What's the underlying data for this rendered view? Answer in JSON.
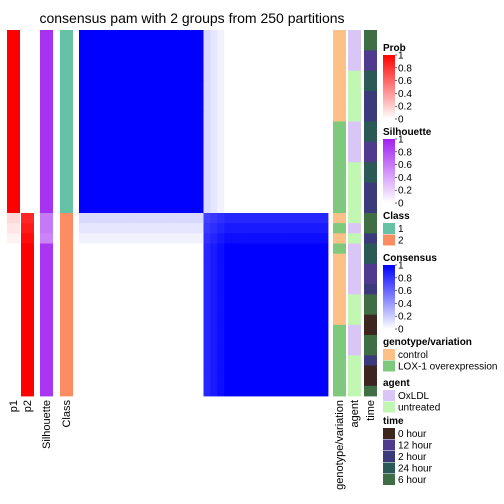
{
  "chart_data": {
    "type": "heatmap",
    "title": "consensus pam with 2 groups from 250 partitions",
    "n_samples": 36,
    "consensus_min": 0,
    "consensus_max": 1,
    "columns": {
      "p1": [
        1,
        1,
        1,
        1,
        1,
        1,
        1,
        1,
        1,
        1,
        1,
        1,
        1,
        1,
        1,
        1,
        1,
        1,
        0.15,
        0.1,
        0.05,
        0,
        0,
        0,
        0,
        0,
        0,
        0,
        0,
        0,
        0,
        0,
        0,
        0,
        0,
        0
      ],
      "p2": [
        0,
        0,
        0,
        0,
        0,
        0,
        0,
        0,
        0,
        0,
        0,
        0,
        0,
        0,
        0,
        0,
        0,
        0,
        0.85,
        0.9,
        0.95,
        1,
        1,
        1,
        1,
        1,
        1,
        1,
        1,
        1,
        1,
        1,
        1,
        1,
        1,
        1
      ],
      "silhouette": [
        0.92,
        0.92,
        0.92,
        0.92,
        0.92,
        0.92,
        0.92,
        0.92,
        0.92,
        0.92,
        0.92,
        0.92,
        0.92,
        0.92,
        0.92,
        0.92,
        0.92,
        0.92,
        0.6,
        0.6,
        0.55,
        0.9,
        0.9,
        0.9,
        0.9,
        0.9,
        0.9,
        0.9,
        0.9,
        0.9,
        0.9,
        0.9,
        0.9,
        0.9,
        0.9,
        0.9
      ],
      "class": [
        1,
        1,
        1,
        1,
        1,
        1,
        1,
        1,
        1,
        1,
        1,
        1,
        1,
        1,
        1,
        1,
        1,
        1,
        2,
        2,
        2,
        2,
        2,
        2,
        2,
        2,
        2,
        2,
        2,
        2,
        2,
        2,
        2,
        2,
        2,
        2
      ],
      "genotype_variation": [
        "control",
        "control",
        "control",
        "control",
        "control",
        "control",
        "control",
        "control",
        "control",
        "LOX-1 overexpression",
        "LOX-1 overexpression",
        "LOX-1 overexpression",
        "LOX-1 overexpression",
        "LOX-1 overexpression",
        "LOX-1 overexpression",
        "LOX-1 overexpression",
        "LOX-1 overexpression",
        "LOX-1 overexpression",
        "control",
        "LOX-1 overexpression",
        "control",
        "LOX-1 overexpression",
        "control",
        "control",
        "control",
        "control",
        "control",
        "control",
        "control",
        "LOX-1 overexpression",
        "LOX-1 overexpression",
        "LOX-1 overexpression",
        "LOX-1 overexpression",
        "LOX-1 overexpression",
        "LOX-1 overexpression",
        "LOX-1 overexpression"
      ],
      "agent": [
        "OxLDL",
        "OxLDL",
        "OxLDL",
        "OxLDL",
        "untreated",
        "untreated",
        "untreated",
        "untreated",
        "untreated",
        "OxLDL",
        "OxLDL",
        "OxLDL",
        "OxLDL",
        "untreated",
        "untreated",
        "untreated",
        "untreated",
        "untreated",
        "untreated",
        "OxLDL",
        "untreated",
        "OxLDL",
        "OxLDL",
        "OxLDL",
        "OxLDL",
        "OxLDL",
        "untreated",
        "untreated",
        "untreated",
        "OxLDL",
        "OxLDL",
        "OxLDL",
        "untreated",
        "untreated",
        "untreated",
        "untreated"
      ],
      "time": [
        "6 hour",
        "6 hour",
        "12 hour",
        "12 hour",
        "24 hour",
        "24 hour",
        "2 hour",
        "2 hour",
        "2 hour",
        "24 hour",
        "24 hour",
        "12 hour",
        "12 hour",
        "24 hour",
        "24 hour",
        "2 hour",
        "2 hour",
        "2 hour",
        "6 hour",
        "6 hour",
        "2 hour",
        "24 hour",
        "24 hour",
        "12 hour",
        "12 hour",
        "2 hour",
        "6 hour",
        "6 hour",
        "0 hour",
        "0 hour",
        "6 hour",
        "6 hour",
        "2 hour",
        "0 hour",
        "0 hour",
        "6 hour"
      ]
    },
    "column_labels": {
      "p1": "p1",
      "p2": "p2",
      "silhouette": "Silhouette",
      "class": "Class",
      "genotype_variation": "genotype/variation",
      "agent": "agent",
      "time": "time"
    }
  },
  "legends": {
    "prob": {
      "title": "Prob",
      "ticks": [
        "1",
        "0.8",
        "0.6",
        "0.4",
        "0.2",
        "0"
      ],
      "color_high": "#ff0000",
      "color_low": "#ffffff"
    },
    "silhouette": {
      "title": "Silhouette",
      "ticks": [
        "1",
        "0.8",
        "0.6",
        "0.4",
        "0.2",
        "0"
      ],
      "color_high": "#a020f0",
      "color_low": "#ffffff"
    },
    "class": {
      "title": "Class",
      "items": [
        {
          "label": "1",
          "color": "#66c2a5"
        },
        {
          "label": "2",
          "color": "#fc8d62"
        }
      ]
    },
    "consensus": {
      "title": "Consensus",
      "ticks": [
        "1",
        "0.8",
        "0.6",
        "0.4",
        "0.2",
        "0"
      ],
      "color_high": "#0000ff",
      "color_low": "#ffffff"
    },
    "genotype": {
      "title": "genotype/variation",
      "items": [
        {
          "label": "control",
          "color": "#fdc086"
        },
        {
          "label": "LOX-1 overexpression",
          "color": "#7fc97f"
        }
      ]
    },
    "agent": {
      "title": "agent",
      "items": [
        {
          "label": "OxLDL",
          "color": "#d9c6f7"
        },
        {
          "label": "untreated",
          "color": "#c1f7b3"
        }
      ]
    },
    "time": {
      "title": "time",
      "items": [
        {
          "label": "0 hour",
          "color": "#3d2620"
        },
        {
          "label": "12 hour",
          "color": "#4e3b8d"
        },
        {
          "label": "2 hour",
          "color": "#3b3a7a"
        },
        {
          "label": "24 hour",
          "color": "#2b5a56"
        },
        {
          "label": "6 hour",
          "color": "#3f6e45"
        }
      ]
    }
  }
}
